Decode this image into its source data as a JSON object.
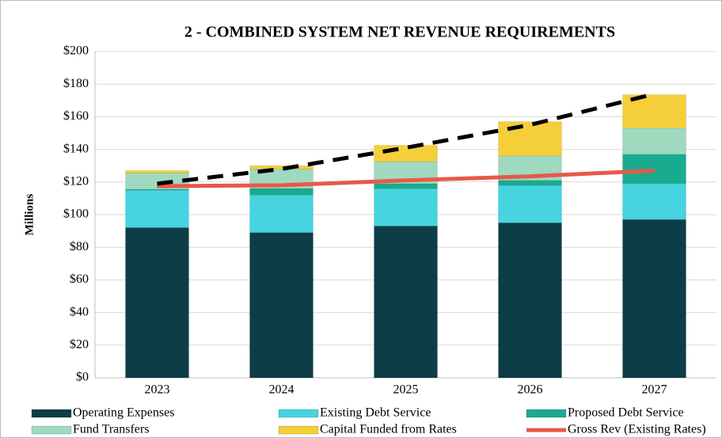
{
  "chart_data": {
    "type": "bar",
    "stacked": true,
    "title": "2 - COMBINED SYSTEM NET REVENUE REQUIREMENTS",
    "y_label": "Millions",
    "categories": [
      "2023",
      "2024",
      "2025",
      "2026",
      "2027"
    ],
    "series": [
      {
        "name": "Operating Expenses",
        "color": "#0d3d47",
        "values": [
          92,
          89,
          93,
          95,
          97
        ]
      },
      {
        "name": "Existing Debt Service",
        "color": "#45d4e0",
        "values": [
          23,
          23,
          23,
          23,
          22
        ]
      },
      {
        "name": "Proposed Debt Service",
        "color": "#1aab8e",
        "values": [
          0.5,
          4,
          3,
          3,
          18
        ]
      },
      {
        "name": "Fund Transfers",
        "color": "#9ed9c0",
        "values": [
          10,
          12,
          13.5,
          15,
          16
        ]
      },
      {
        "name": "Capital Funded from Rates",
        "color": "#f5cf3a",
        "values": [
          1.5,
          2,
          10,
          21,
          20.5
        ]
      },
      {
        "name": "Gross Rev (Existing Rates)",
        "color": "#e8584a",
        "type": "line",
        "values": [
          117.5,
          118,
          121,
          123.5,
          127
        ]
      },
      {
        "color": "#000000",
        "type": "line",
        "dashed": true,
        "values": [
          119,
          128,
          141,
          155,
          174
        ]
      }
    ],
    "ylim": [
      0,
      200
    ],
    "yticks": [
      {
        "value": 0,
        "label": "$0"
      },
      {
        "value": 20,
        "label": "$20"
      },
      {
        "value": 40,
        "label": "$40"
      },
      {
        "value": 60,
        "label": "$60"
      },
      {
        "value": 80,
        "label": "$80"
      },
      {
        "value": 100,
        "label": "$100"
      },
      {
        "value": 120,
        "label": "$120"
      },
      {
        "value": 140,
        "label": "$140"
      },
      {
        "value": 160,
        "label": "$160"
      },
      {
        "value": 180,
        "label": "$180"
      },
      {
        "value": 200,
        "label": "$200"
      }
    ],
    "grid": true,
    "legend": "bottom"
  }
}
